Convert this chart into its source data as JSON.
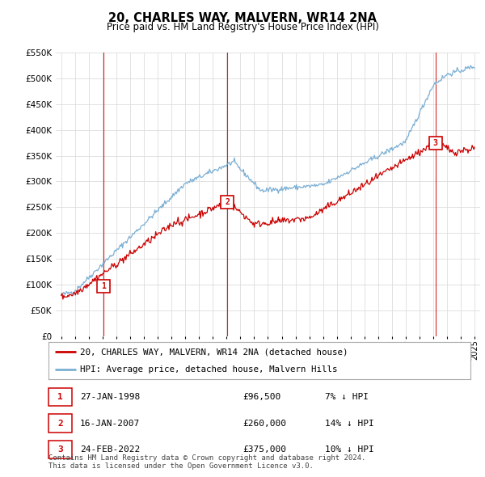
{
  "title": "20, CHARLES WAY, MALVERN, WR14 2NA",
  "subtitle": "Price paid vs. HM Land Registry's House Price Index (HPI)",
  "ylim": [
    0,
    550000
  ],
  "yticks": [
    0,
    50000,
    100000,
    150000,
    200000,
    250000,
    300000,
    350000,
    400000,
    450000,
    500000,
    550000
  ],
  "sale_color": "#cc0000",
  "hpi_color": "#7bafd4",
  "purchases": [
    {
      "date_num": 1998.07,
      "price": 96500,
      "label": "1"
    },
    {
      "date_num": 2007.04,
      "price": 260000,
      "label": "2"
    },
    {
      "date_num": 2022.15,
      "price": 375000,
      "label": "3"
    }
  ],
  "vline_color": "#cc0000",
  "table_rows": [
    {
      "num": "1",
      "date": "27-JAN-1998",
      "price": "£96,500",
      "info": "7% ↓ HPI"
    },
    {
      "num": "2",
      "date": "16-JAN-2007",
      "price": "£260,000",
      "info": "14% ↓ HPI"
    },
    {
      "num": "3",
      "date": "24-FEB-2022",
      "price": "£375,000",
      "info": "10% ↓ HPI"
    }
  ],
  "legend_sale": "20, CHARLES WAY, MALVERN, WR14 2NA (detached house)",
  "legend_hpi": "HPI: Average price, detached house, Malvern Hills",
  "footer": "Contains HM Land Registry data © Crown copyright and database right 2024.\nThis data is licensed under the Open Government Licence v3.0.",
  "bg_color": "#ffffff",
  "grid_color": "#dddddd"
}
